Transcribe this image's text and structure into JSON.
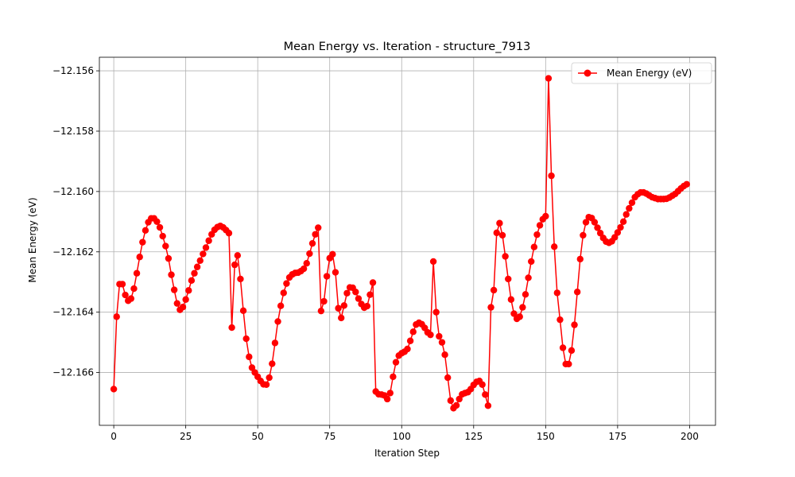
{
  "chart_data": {
    "type": "line",
    "title": "Mean Energy vs. Iteration - structure_7913",
    "xlabel": "Iteration Step",
    "ylabel": "Mean Energy (eV)",
    "xlim": [
      -5,
      209
    ],
    "ylim": [
      -12.16775,
      -12.15555
    ],
    "xticks": [
      0,
      25,
      50,
      75,
      100,
      125,
      150,
      175,
      200
    ],
    "xtick_labels": [
      "0",
      "25",
      "50",
      "75",
      "100",
      "125",
      "150",
      "175",
      "200"
    ],
    "yticks": [
      -12.166,
      -12.164,
      -12.162,
      -12.16,
      -12.158,
      -12.156
    ],
    "ytick_labels": [
      "−12.166",
      "−12.164",
      "−12.162",
      "−12.160",
      "−12.158",
      "−12.156"
    ],
    "grid": true,
    "legend": {
      "position": "top-right",
      "entries": [
        "Mean Energy (eV)"
      ]
    },
    "series": [
      {
        "name": "Mean Energy (eV)",
        "color": "#ff0000",
        "marker": "circle",
        "values": [
          -12.16655,
          -12.16415,
          -12.16307,
          -12.16307,
          -12.16343,
          -12.16362,
          -12.16355,
          -12.16322,
          -12.16271,
          -12.16217,
          -12.16168,
          -12.16129,
          -12.16102,
          -12.16089,
          -12.16089,
          -12.161,
          -12.16119,
          -12.16148,
          -12.16181,
          -12.16222,
          -12.16276,
          -12.16326,
          -12.16371,
          -12.16392,
          -12.16383,
          -12.16358,
          -12.16328,
          -12.16295,
          -12.16271,
          -12.1625,
          -12.16229,
          -12.16207,
          -12.16186,
          -12.16163,
          -12.16142,
          -12.16127,
          -12.16118,
          -12.16114,
          -12.16119,
          -12.16128,
          -12.16138,
          -12.16451,
          -12.16243,
          -12.16212,
          -12.1629,
          -12.16395,
          -12.16488,
          -12.16548,
          -12.16584,
          -12.166,
          -12.16614,
          -12.16628,
          -12.16639,
          -12.1664,
          -12.16617,
          -12.16571,
          -12.16502,
          -12.16431,
          -12.16379,
          -12.16336,
          -12.16305,
          -12.16285,
          -12.16275,
          -12.1627,
          -12.16269,
          -12.16264,
          -12.16256,
          -12.16238,
          -12.16206,
          -12.16172,
          -12.16142,
          -12.1612,
          -12.16396,
          -12.16364,
          -12.16281,
          -12.16221,
          -12.16208,
          -12.16268,
          -12.16387,
          -12.16419,
          -12.16378,
          -12.16337,
          -12.16318,
          -12.16319,
          -12.16333,
          -12.16355,
          -12.16373,
          -12.16385,
          -12.1638,
          -12.16342,
          -12.16302,
          -12.16663,
          -12.16672,
          -12.16673,
          -12.16676,
          -12.16688,
          -12.16668,
          -12.16614,
          -12.16566,
          -12.16544,
          -12.16536,
          -12.16531,
          -12.16522,
          -12.16495,
          -12.16465,
          -12.16441,
          -12.16435,
          -12.1644,
          -12.16452,
          -12.16467,
          -12.16475,
          -12.16232,
          -12.164,
          -12.1648,
          -12.165,
          -12.16541,
          -12.16617,
          -12.16693,
          -12.16718,
          -12.16709,
          -12.16688,
          -12.16672,
          -12.16668,
          -12.16665,
          -12.16655,
          -12.16641,
          -12.16631,
          -12.16628,
          -12.1664,
          -12.16673,
          -12.1671,
          -12.16384,
          -12.16327,
          -12.16137,
          -12.16105,
          -12.16145,
          -12.16215,
          -12.1629,
          -12.16358,
          -12.16405,
          -12.16422,
          -12.16415,
          -12.16384,
          -12.16341,
          -12.16286,
          -12.16232,
          -12.16184,
          -12.16143,
          -12.16112,
          -12.16092,
          -12.16082,
          -12.15625,
          -12.15948,
          -12.16183,
          -12.16336,
          -12.16425,
          -12.16518,
          -12.16572,
          -12.16572,
          -12.16527,
          -12.16442,
          -12.16333,
          -12.16224,
          -12.16145,
          -12.16102,
          -12.16085,
          -12.16088,
          -12.16102,
          -12.1612,
          -12.16138,
          -12.16154,
          -12.16166,
          -12.1617,
          -12.16165,
          -12.16152,
          -12.16136,
          -12.16119,
          -12.161,
          -12.16076,
          -12.16056,
          -12.16037,
          -12.16019,
          -12.16009,
          -12.16003,
          -12.16003,
          -12.16007,
          -12.16013,
          -12.16019,
          -12.16022,
          -12.16025,
          -12.16025,
          -12.16025,
          -12.16024,
          -12.1602,
          -12.16014,
          -12.16008,
          -12.15999,
          -12.1599,
          -12.15982,
          -12.15976
        ]
      }
    ]
  }
}
